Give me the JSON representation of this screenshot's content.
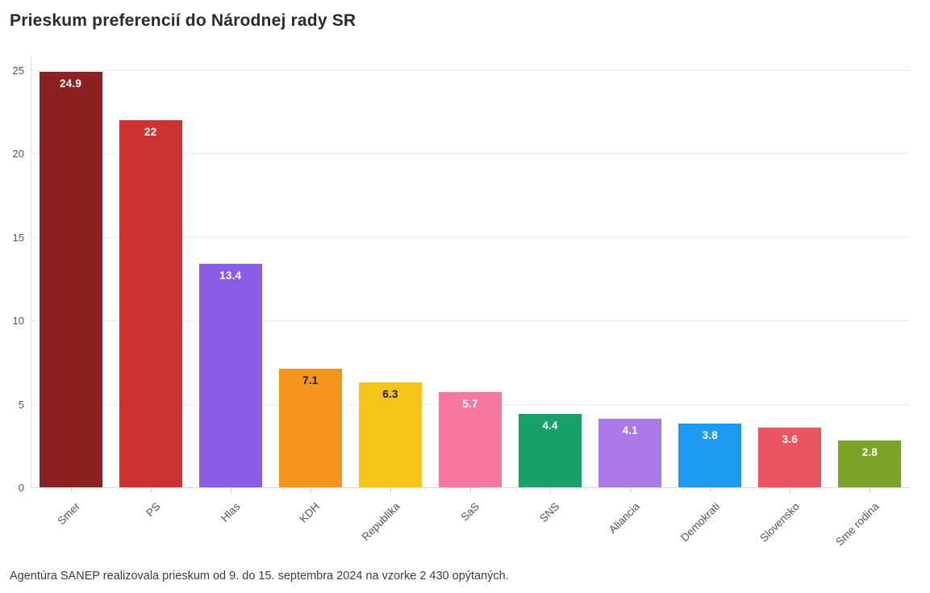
{
  "header": {
    "title": "Prieskum preferencií do Národnej rady SR"
  },
  "footer": {
    "note": "Agentúra SANEP realizovala prieskum od 9. do 15. septembra 2024 na vzorke 2 430 opýtaných."
  },
  "chart_data": {
    "type": "bar",
    "title": "Prieskum preferencií do Národnej rady SR",
    "categories": [
      "Smer",
      "PS",
      "Hlas",
      "KDH",
      "Republika",
      "SaS",
      "SNS",
      "Aliancia",
      "Demokrati",
      "Slovensko",
      "Sme rodina"
    ],
    "values": [
      24.9,
      22,
      13.4,
      7.1,
      6.3,
      5.7,
      4.4,
      4.1,
      3.8,
      3.6,
      2.8
    ],
    "value_labels": [
      "24.9",
      "22",
      "13.4",
      "7.1",
      "6.3",
      "5.7",
      "4.4",
      "4.1",
      "3.8",
      "3.6",
      "2.8"
    ],
    "bar_colors": [
      "#8B2121",
      "#CB3433",
      "#8B5CE5",
      "#F7941E",
      "#F5C518",
      "#F7789F",
      "#16A268",
      "#A97AE8",
      "#1E9BF0",
      "#E95560",
      "#7AA327"
    ],
    "value_label_colors": [
      "#ffffff",
      "#ffffff",
      "#ffffff",
      "#1a1a1a",
      "#1a1a1a",
      "#ffffff",
      "#ffffff",
      "#ffffff",
      "#ffffff",
      "#ffffff",
      "#ffffff"
    ],
    "xlabel": "",
    "ylabel": "",
    "ylim": [
      0,
      25
    ],
    "yticks": [
      0,
      5,
      10,
      15,
      20,
      25
    ],
    "grid": true,
    "legend": "none",
    "source_note": "Agentúra SANEP realizovala prieskum od 9. do 15. septembra 2024 na vzorke 2 430 opýtaných."
  }
}
